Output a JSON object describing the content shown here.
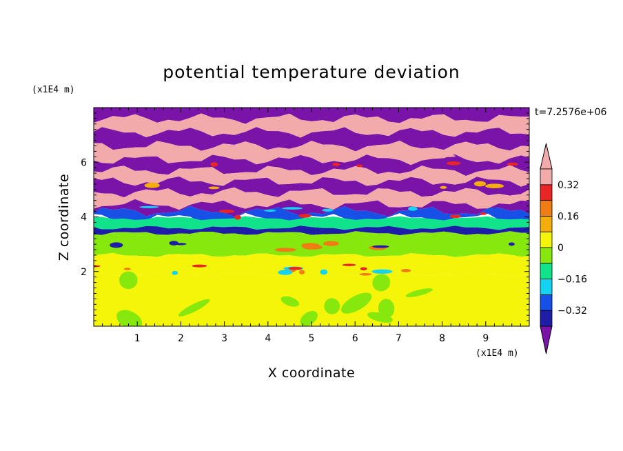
{
  "chart_data": {
    "type": "heatmap",
    "title": "potential temperature deviation",
    "xlabel": "X coordinate",
    "ylabel": "Z coordinate",
    "x_unit": "(x1E4 m)",
    "y_unit": "(x1E4 m)",
    "time_label": "t=7.2576e+06",
    "xlim": [
      0,
      10
    ],
    "ylim": [
      0,
      8
    ],
    "x_ticks": [
      "1",
      "2",
      "3",
      "4",
      "5",
      "6",
      "7",
      "8",
      "9"
    ],
    "y_ticks": [
      "2",
      "4",
      "6"
    ],
    "colorbar": {
      "levels": [
        -0.4,
        -0.32,
        -0.24,
        -0.16,
        -0.08,
        0,
        0.08,
        0.16,
        0.24,
        0.32,
        0.4
      ],
      "labels": [
        "0.32",
        "0.16",
        "0",
        "-0.16",
        "-0.32"
      ],
      "colors": [
        "#7a14a8",
        "#1d1da8",
        "#1650e6",
        "#12d3f2",
        "#10e38a",
        "#86e80c",
        "#f5f50a",
        "#f5ad0c",
        "#f07d14",
        "#ea2525",
        "#f2aaaa"
      ]
    },
    "bands": [
      {
        "z": [
          7.6,
          8.0
        ],
        "value": -0.45
      },
      {
        "z": [
          7.1,
          7.6
        ],
        "value": 0.45
      },
      {
        "z": [
          6.6,
          7.1
        ],
        "value": -0.45
      },
      {
        "z": [
          6.1,
          6.6
        ],
        "value": 0.45
      },
      {
        "z": [
          5.7,
          6.1
        ],
        "value": -0.45
      },
      {
        "z": [
          5.3,
          5.7
        ],
        "value": 0.45
      },
      {
        "z": [
          4.9,
          5.3
        ],
        "value": -0.45
      },
      {
        "z": [
          4.45,
          4.9
        ],
        "value": 0.45
      },
      {
        "z": [
          4.2,
          4.45
        ],
        "value": -0.45
      },
      {
        "z": [
          3.95,
          4.2
        ],
        "value": -0.28
      },
      {
        "z": [
          3.6,
          3.95
        ],
        "value": -0.1
      },
      {
        "z": [
          3.4,
          3.6
        ],
        "value": -0.35
      },
      {
        "z": [
          2.6,
          3.4
        ],
        "value": -0.05
      },
      {
        "z": [
          1.9,
          2.6
        ],
        "value": 0.02
      },
      {
        "z": [
          0.0,
          1.9
        ],
        "value": 0.04
      }
    ]
  }
}
